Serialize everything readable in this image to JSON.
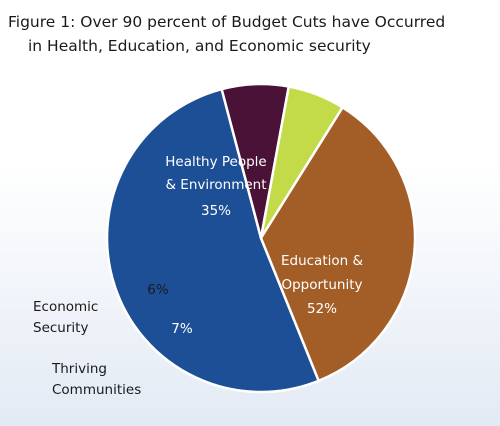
{
  "title_lines": [
    "Figure 1: Over 90 percent of Budget Cuts have Occurred",
    "in Health, Education, and Economic security"
  ],
  "chart_data": {
    "type": "pie",
    "title": "Figure 1: Over 90 percent of Budget Cuts have Occurred in Health, Education, and Economic security",
    "slices": [
      {
        "label": "Education & Opportunity",
        "label_lines": [
          "Education &",
          "Opportunity"
        ],
        "value": 52,
        "value_label": "52%",
        "color": "#1d4f96"
      },
      {
        "label": "Thriving Communities",
        "label_lines": [
          "Thriving",
          "Communities"
        ],
        "value": 7,
        "value_label": "7%",
        "color": "#4a1236"
      },
      {
        "label": "Economic Security",
        "label_lines": [
          "Economic",
          "Security"
        ],
        "value": 6,
        "value_label": "6%",
        "color": "#c4db49"
      },
      {
        "label": "Healthy People & Environment",
        "label_lines": [
          "Healthy People",
          "& Environment"
        ],
        "value": 35,
        "value_label": "35%",
        "color": "#a35e28"
      }
    ],
    "start_angle_deg": 68,
    "direction": "clockwise",
    "legend": "none"
  }
}
